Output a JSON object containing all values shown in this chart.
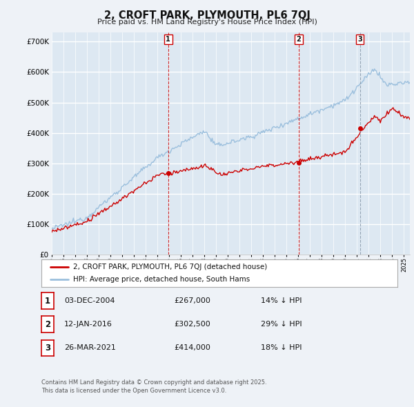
{
  "title": "2, CROFT PARK, PLYMOUTH, PL6 7QJ",
  "subtitle": "Price paid vs. HM Land Registry's House Price Index (HPI)",
  "ylim": [
    0,
    730000
  ],
  "xlim_start": 1995.0,
  "xlim_end": 2025.5,
  "hpi_color": "#9bbfdd",
  "price_color": "#cc0000",
  "vline_color_red": "#cc0000",
  "vline_color_gray": "#8899aa",
  "background_color": "#eef2f7",
  "plot_bg_color": "#dde8f2",
  "grid_color": "#ffffff",
  "sale_markers": [
    {
      "year": 2004.92,
      "price": 267000,
      "label": "1",
      "vline": "red"
    },
    {
      "year": 2016.04,
      "price": 302500,
      "label": "2",
      "vline": "red"
    },
    {
      "year": 2021.24,
      "price": 414000,
      "label": "3",
      "vline": "gray"
    }
  ],
  "legend_entries": [
    "2, CROFT PARK, PLYMOUTH, PL6 7QJ (detached house)",
    "HPI: Average price, detached house, South Hams"
  ],
  "table_rows": [
    {
      "num": "1",
      "date": "03-DEC-2004",
      "price": "£267,000",
      "hpi": "14% ↓ HPI"
    },
    {
      "num": "2",
      "date": "12-JAN-2016",
      "price": "£302,500",
      "hpi": "29% ↓ HPI"
    },
    {
      "num": "3",
      "date": "26-MAR-2021",
      "price": "£414,000",
      "hpi": "18% ↓ HPI"
    }
  ],
  "footnote": "Contains HM Land Registry data © Crown copyright and database right 2025.\nThis data is licensed under the Open Government Licence v3.0."
}
